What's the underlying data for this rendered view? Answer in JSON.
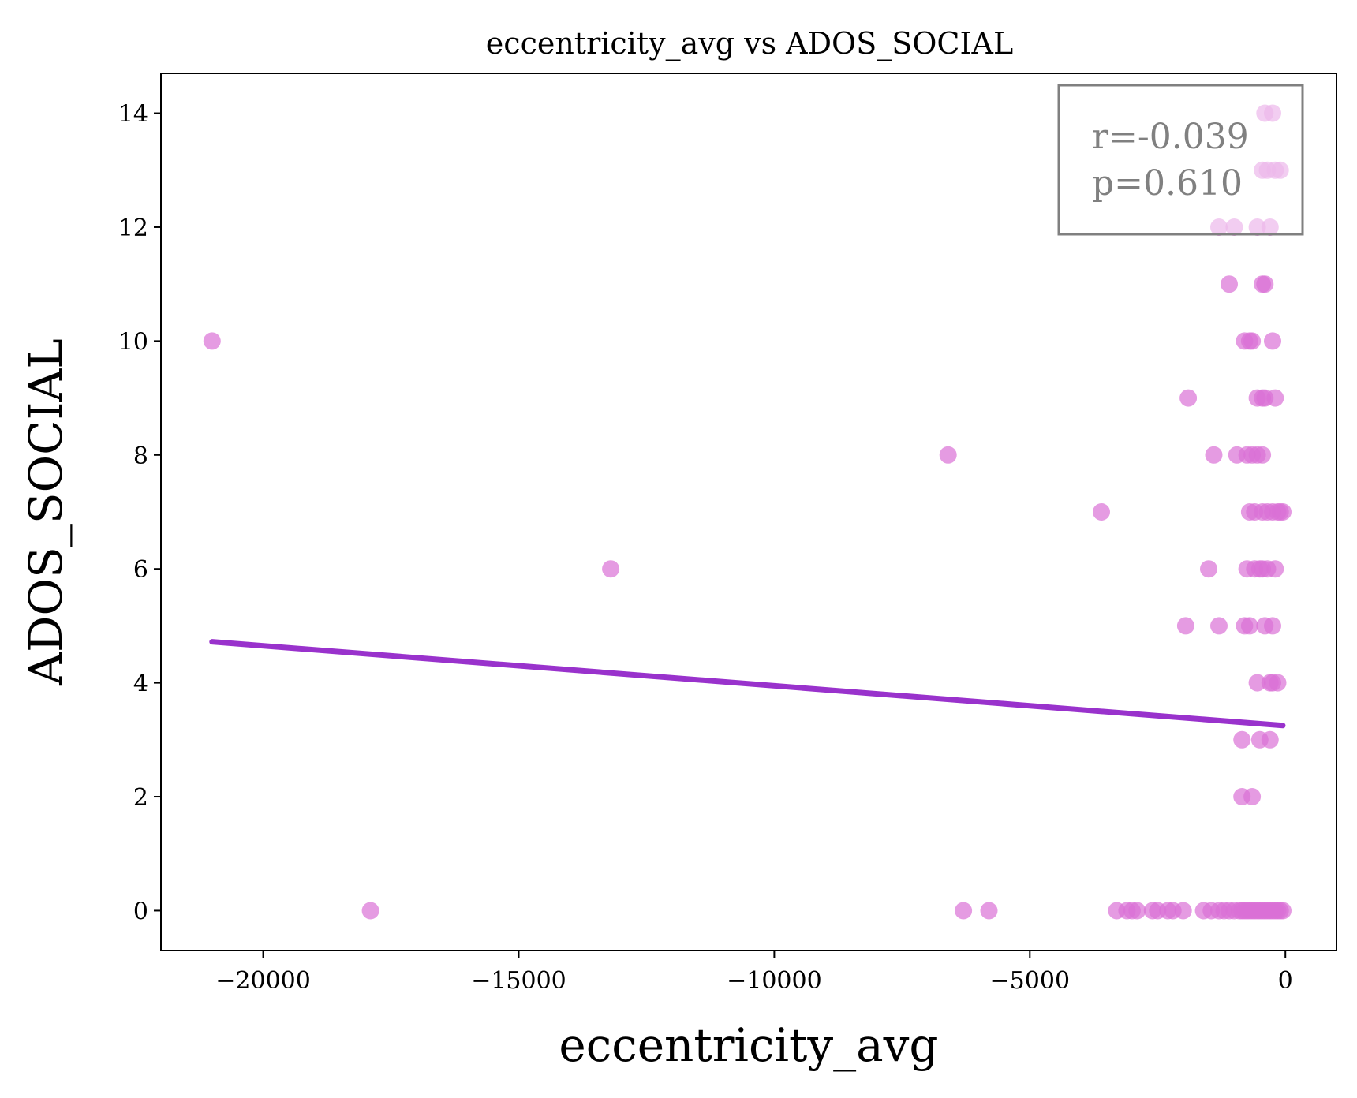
{
  "chart_data": {
    "type": "scatter",
    "title": "eccentricity_avg vs ADOS_SOCIAL",
    "xlabel": "eccentricity_avg",
    "ylabel": "ADOS_SOCIAL",
    "xlim": [
      -22000,
      1000
    ],
    "ylim": [
      -0.7,
      14.7
    ],
    "xticks": [
      -20000,
      -15000,
      -10000,
      -5000,
      0
    ],
    "xtick_labels": [
      "−20000",
      "−15000",
      "−10000",
      "−5000",
      "0"
    ],
    "yticks": [
      0,
      2,
      4,
      6,
      8,
      10,
      12,
      14
    ],
    "ytick_labels": [
      "0",
      "2",
      "4",
      "6",
      "8",
      "10",
      "12",
      "14"
    ],
    "grid": false,
    "point_color": "#da70d6",
    "line_color": "#9932cc",
    "annotation": {
      "r": "r=-0.039",
      "p": "p=0.610"
    },
    "regression": {
      "x": [
        -21000,
        -50
      ],
      "y": [
        4.72,
        3.25
      ]
    },
    "series": [
      {
        "name": "ADOS_SOCIAL",
        "points": [
          [
            -21000,
            10
          ],
          [
            -17900,
            0
          ],
          [
            -13200,
            6
          ],
          [
            -6600,
            8
          ],
          [
            -6300,
            0
          ],
          [
            -5800,
            0
          ],
          [
            -3600,
            7
          ],
          [
            -3300,
            0
          ],
          [
            -3100,
            0
          ],
          [
            -3000,
            0
          ],
          [
            -2900,
            0
          ],
          [
            -2600,
            0
          ],
          [
            -2500,
            0
          ],
          [
            -2300,
            0
          ],
          [
            -2200,
            0
          ],
          [
            -2000,
            0
          ],
          [
            -1900,
            9
          ],
          [
            -1950,
            5
          ],
          [
            -1600,
            0
          ],
          [
            -1500,
            6
          ],
          [
            -1450,
            0
          ],
          [
            -1400,
            8
          ],
          [
            -1300,
            0
          ],
          [
            -1300,
            12
          ],
          [
            -1200,
            0
          ],
          [
            -1300,
            5
          ],
          [
            -1100,
            11
          ],
          [
            -1100,
            0
          ],
          [
            -1000,
            12
          ],
          [
            -1000,
            0
          ],
          [
            -950,
            8
          ],
          [
            -900,
            0
          ],
          [
            -850,
            3
          ],
          [
            -850,
            2
          ],
          [
            -850,
            0
          ],
          [
            -800,
            10
          ],
          [
            -800,
            5
          ],
          [
            -800,
            0
          ],
          [
            -750,
            6
          ],
          [
            -750,
            8
          ],
          [
            -750,
            0
          ],
          [
            -700,
            10
          ],
          [
            -700,
            7
          ],
          [
            -700,
            5
          ],
          [
            -700,
            0
          ],
          [
            -650,
            2
          ],
          [
            -650,
            0
          ],
          [
            -650,
            10
          ],
          [
            -650,
            8
          ],
          [
            -600,
            7
          ],
          [
            -600,
            6
          ],
          [
            -600,
            0
          ],
          [
            -550,
            9
          ],
          [
            -550,
            8
          ],
          [
            -550,
            4
          ],
          [
            -550,
            0
          ],
          [
            -550,
            12
          ],
          [
            -500,
            6
          ],
          [
            -500,
            3
          ],
          [
            -500,
            0
          ],
          [
            -450,
            13
          ],
          [
            -450,
            11
          ],
          [
            -450,
            9
          ],
          [
            -450,
            8
          ],
          [
            -450,
            7
          ],
          [
            -450,
            6
          ],
          [
            -450,
            0
          ],
          [
            -400,
            14
          ],
          [
            -400,
            11
          ],
          [
            -400,
            5
          ],
          [
            -400,
            0
          ],
          [
            -400,
            9
          ],
          [
            -350,
            13
          ],
          [
            -350,
            7
          ],
          [
            -350,
            6
          ],
          [
            -350,
            0
          ],
          [
            -300,
            12
          ],
          [
            -300,
            4
          ],
          [
            -300,
            3
          ],
          [
            -300,
            0
          ],
          [
            -250,
            14
          ],
          [
            -250,
            10
          ],
          [
            -250,
            7
          ],
          [
            -250,
            5
          ],
          [
            -250,
            4
          ],
          [
            -250,
            0
          ],
          [
            -200,
            13
          ],
          [
            -200,
            9
          ],
          [
            -200,
            6
          ],
          [
            -200,
            0
          ],
          [
            -150,
            7
          ],
          [
            -150,
            4
          ],
          [
            -150,
            0
          ],
          [
            -100,
            13
          ],
          [
            -100,
            7
          ],
          [
            -100,
            0
          ],
          [
            -50,
            7
          ],
          [
            -50,
            0
          ]
        ]
      }
    ]
  }
}
